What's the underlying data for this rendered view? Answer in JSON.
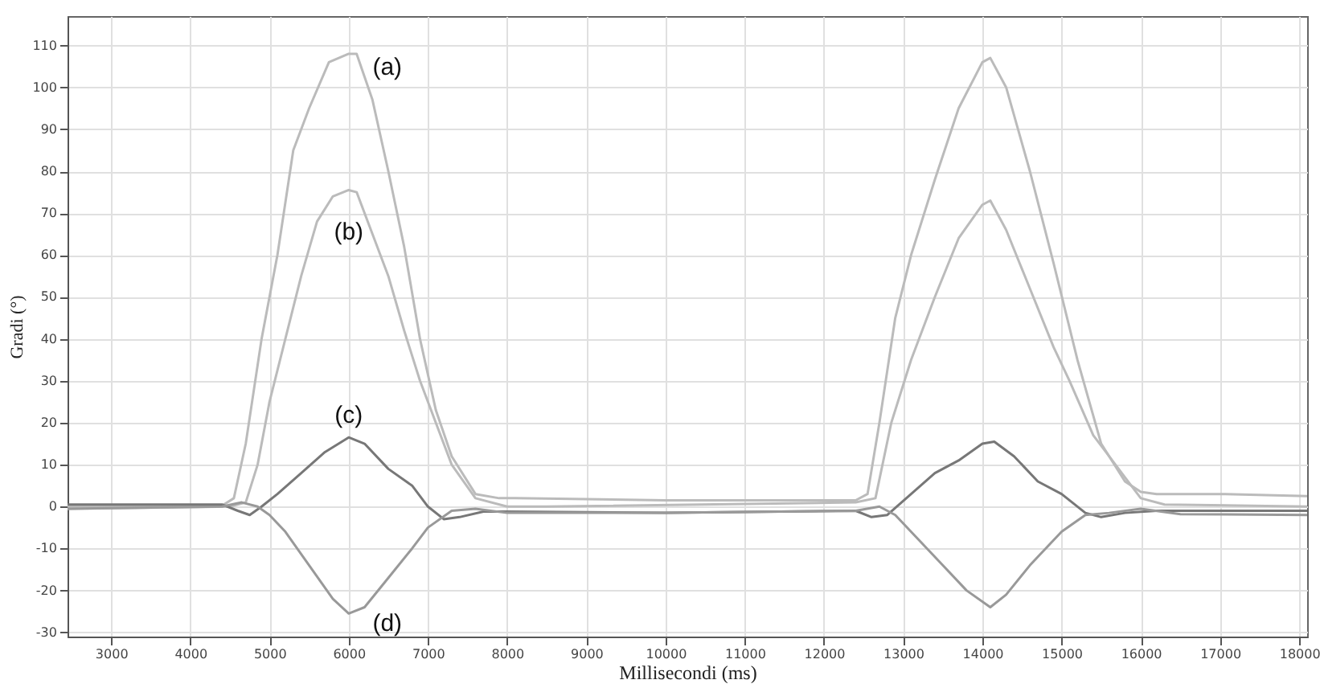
{
  "chart_data": {
    "type": "line",
    "xlabel": "Millisecondi (ms)",
    "ylabel": "Gradi (°)",
    "xlim": [
      2450,
      18100
    ],
    "ylim": [
      -31,
      117
    ],
    "xticks": [
      3000,
      4000,
      5000,
      6000,
      7000,
      8000,
      9000,
      10000,
      11000,
      12000,
      13000,
      14000,
      15000,
      16000,
      17000,
      18000
    ],
    "yticks": [
      -30,
      -20,
      -10,
      0,
      10,
      20,
      30,
      40,
      50,
      60,
      70,
      80,
      90,
      100,
      110
    ],
    "grid": true,
    "marker": "none",
    "line_style": "solid",
    "series": [
      {
        "color": "#bbbbbb",
        "x": [
          2450,
          4400,
          4550,
          4700,
          4900,
          5100,
          5300,
          5500,
          5750,
          6000,
          6100,
          6300,
          6500,
          6700,
          6900,
          7100,
          7300,
          7600,
          7900,
          8100,
          10000,
          12400,
          12550,
          12700,
          12900,
          13100,
          13400,
          13700,
          14000,
          14100,
          14300,
          14600,
          14900,
          15200,
          15500,
          15800,
          16000,
          16200,
          17000,
          18100
        ],
        "values": [
          0,
          0.2,
          2,
          15,
          40,
          60,
          85,
          95,
          106,
          108,
          108,
          97,
          80,
          62,
          40,
          23,
          12,
          3,
          2,
          2,
          1.5,
          1.5,
          3,
          20,
          45,
          60,
          78,
          95,
          106,
          107,
          100,
          80,
          58,
          35,
          15,
          6,
          3.5,
          3,
          3,
          2.5
        ]
      },
      {
        "color": "#bbbbbb",
        "x": [
          2450,
          4500,
          4700,
          4850,
          5000,
          5200,
          5400,
          5600,
          5800,
          6000,
          6100,
          6300,
          6500,
          6700,
          6900,
          7100,
          7300,
          7600,
          8000,
          8500,
          12400,
          12650,
          12850,
          13100,
          13400,
          13700,
          14000,
          14100,
          14300,
          14600,
          14900,
          15100,
          15400,
          15600,
          15800,
          16000,
          16300,
          18100
        ],
        "values": [
          -0.5,
          0,
          1,
          10,
          25,
          40,
          55,
          68,
          74,
          75.5,
          75,
          65,
          55,
          42,
          30,
          20,
          10,
          2,
          0,
          0,
          1,
          2,
          20,
          35,
          50,
          64,
          72,
          73,
          66,
          52,
          38,
          30,
          17,
          12,
          7,
          2,
          0.5,
          0
        ]
      },
      {
        "color": "#777777",
        "x": [
          2450,
          4400,
          4600,
          4750,
          4900,
          5100,
          5400,
          5700,
          6000,
          6200,
          6500,
          6800,
          7000,
          7200,
          7400,
          7700,
          8000,
          10000,
          12400,
          12600,
          12800,
          13100,
          13400,
          13700,
          14000,
          14150,
          14400,
          14700,
          15000,
          15300,
          15500,
          15800,
          16200,
          18100
        ],
        "values": [
          0.5,
          0.5,
          -1,
          -2,
          0,
          3,
          8,
          13,
          16.5,
          15,
          9,
          5,
          0,
          -3,
          -2.5,
          -1.2,
          -1.2,
          -1.5,
          -1,
          -2.5,
          -2,
          3,
          8,
          11,
          15,
          15.5,
          12,
          6,
          3,
          -1.5,
          -2.5,
          -1.5,
          -1,
          -1
        ]
      },
      {
        "color": "#999999",
        "x": [
          2450,
          4400,
          4650,
          4850,
          5000,
          5200,
          5500,
          5800,
          6000,
          6200,
          6500,
          6800,
          7000,
          7300,
          7600,
          8000,
          10000,
          12400,
          12700,
          12900,
          13200,
          13500,
          13800,
          14100,
          14300,
          14600,
          15000,
          15300,
          15600,
          16000,
          16500,
          18100
        ],
        "values": [
          -0.5,
          0,
          1,
          0,
          -2,
          -6,
          -14,
          -22,
          -25.5,
          -24,
          -17,
          -10,
          -5,
          -1,
          -0.5,
          -1.5,
          -1.5,
          -1,
          0,
          -2,
          -8,
          -14,
          -20,
          -24,
          -21,
          -14,
          -6,
          -2,
          -1.5,
          -0.5,
          -1.8,
          -2
        ]
      }
    ],
    "annotations": [
      "(a)",
      "(b)",
      "(c)",
      "(d)"
    ]
  }
}
